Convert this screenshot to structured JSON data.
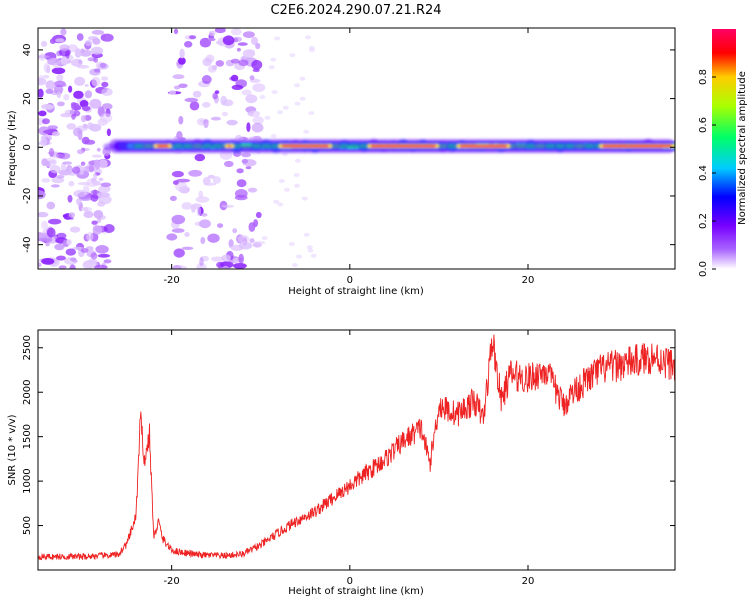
{
  "title": "C2E6.2024.290.07.21.R24",
  "colors": {
    "snr_line": "#ee2222",
    "background": "#ffffff",
    "frame": "#000000"
  },
  "chart_data": [
    {
      "type": "heatmap",
      "xlabel": "Height of straight line (km)",
      "ylabel": "Frequency (Hz)",
      "xlim": [
        -35,
        36.5
      ],
      "ylim": [
        -50,
        49
      ],
      "xticks": [
        -20,
        0,
        20
      ],
      "yticks": [
        -40,
        -20,
        0,
        20,
        40
      ],
      "grid": false,
      "colorbar": {
        "label": "Normalized spectral amplitude",
        "range": [
          0,
          1
        ],
        "ticks": [
          0.0,
          0.2,
          0.4,
          0.6,
          0.8
        ],
        "colormap": [
          "#ffffff",
          "#8800ff",
          "#0000ff",
          "#00ffff",
          "#00ff00",
          "#ffff00",
          "#ff0000",
          "#ff0066"
        ]
      },
      "ridge": {
        "frequency": 0.5,
        "start_height": -27,
        "peak_segments": [
          [
            -22,
            -20
          ],
          [
            -14,
            -13
          ],
          [
            -8,
            -2
          ],
          [
            2,
            10
          ],
          [
            12,
            18
          ],
          [
            28,
            36.5
          ]
        ]
      },
      "noise_bands": [
        [
          -35,
          -27
        ],
        [
          -20,
          -10
        ]
      ]
    },
    {
      "type": "line",
      "xlabel": "Height of straight line (km)",
      "ylabel": "SNR (10 * v/v)",
      "xlim": [
        -35,
        36.5
      ],
      "ylim": [
        0,
        2700
      ],
      "xticks": [
        -20,
        0,
        20
      ],
      "yticks": [
        500,
        1000,
        1500,
        2000,
        2500
      ],
      "grid": false,
      "series": [
        {
          "x": [
            -35,
            -30,
            -26,
            -25,
            -24,
            -23.5,
            -23,
            -22.5,
            -22,
            -21.5,
            -21,
            -20,
            -17,
            -14,
            -12,
            -10,
            -8,
            -6,
            -4,
            -2,
            0,
            2,
            4,
            6,
            8,
            9,
            10,
            12,
            14,
            15,
            16,
            17,
            18,
            20,
            22,
            24,
            25,
            28,
            30,
            32,
            34,
            36.5
          ],
          "y": [
            150,
            150,
            170,
            300,
            600,
            1700,
            1200,
            1550,
            350,
            550,
            350,
            220,
            170,
            160,
            180,
            280,
            420,
            550,
            650,
            800,
            950,
            1100,
            1250,
            1450,
            1600,
            1200,
            1850,
            1750,
            1900,
            1700,
            2600,
            1900,
            2200,
            2150,
            2250,
            1850,
            2000,
            2250,
            2300,
            2350,
            2400,
            2300
          ]
        }
      ]
    }
  ]
}
